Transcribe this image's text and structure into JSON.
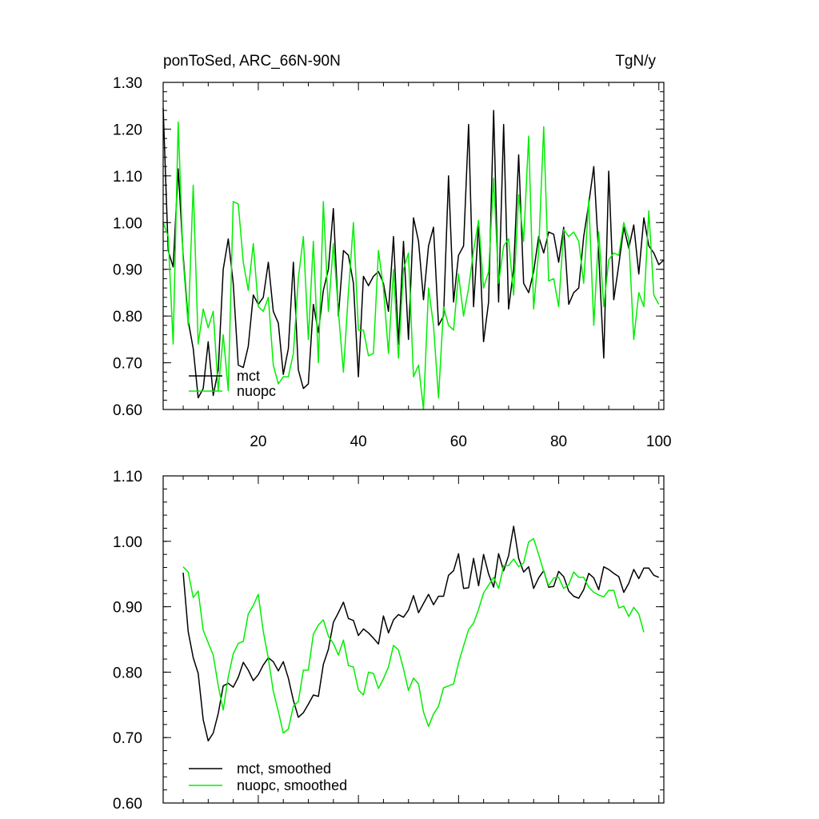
{
  "chart_data": [
    {
      "type": "line",
      "title": "ponToSed, ARC_66N-90N",
      "units": "TgN/y",
      "xlim": [
        1,
        101
      ],
      "ylim": [
        0.6,
        1.3
      ],
      "x_ticks": [
        20,
        40,
        60,
        80,
        100
      ],
      "y_ticks": [
        "0.60",
        "0.70",
        "0.80",
        "0.90",
        "1.00",
        "1.10",
        "1.20",
        "1.30"
      ],
      "legend_position": "bottom-left",
      "series": [
        {
          "name": "mct",
          "color": "#000000",
          "start_x": 1,
          "values": [
            1.245,
            0.94,
            0.905,
            1.115,
            0.93,
            0.79,
            0.73,
            0.625,
            0.645,
            0.745,
            0.63,
            0.685,
            0.9,
            0.965,
            0.87,
            0.695,
            0.69,
            0.735,
            0.845,
            0.825,
            0.84,
            0.915,
            0.81,
            0.785,
            0.675,
            0.73,
            0.915,
            0.685,
            0.645,
            0.655,
            0.825,
            0.765,
            0.855,
            0.9,
            1.03,
            0.8,
            0.94,
            0.93,
            0.87,
            0.67,
            0.885,
            0.865,
            0.885,
            0.895,
            0.87,
            0.81,
            0.97,
            0.74,
            0.96,
            0.75,
            1.01,
            0.96,
            0.835,
            0.95,
            0.99,
            0.78,
            0.8,
            1.1,
            0.83,
            0.93,
            0.95,
            1.21,
            0.82,
            1.0,
            0.745,
            0.83,
            1.24,
            0.83,
            1.21,
            0.815,
            0.9,
            1.145,
            0.87,
            0.85,
            0.895,
            0.97,
            0.935,
            0.98,
            0.975,
            0.915,
            0.99,
            0.825,
            0.85,
            0.86,
            0.97,
            1.04,
            1.12,
            0.93,
            0.71,
            1.11,
            0.835,
            0.91,
            0.99,
            0.945,
            0.995,
            0.89,
            1.01,
            0.95,
            0.935,
            0.91,
            0.92
          ]
        },
        {
          "name": "nuopc",
          "color": "#00ee00",
          "start_x": 1,
          "values": [
            1.0,
            0.97,
            0.74,
            1.215,
            0.92,
            0.78,
            1.08,
            0.74,
            0.815,
            0.775,
            0.81,
            0.64,
            0.76,
            0.64,
            1.045,
            1.04,
            0.915,
            0.855,
            0.955,
            0.82,
            0.81,
            0.84,
            0.695,
            0.655,
            0.67,
            0.67,
            0.72,
            0.88,
            0.97,
            0.75,
            0.96,
            0.7,
            1.045,
            0.81,
            0.955,
            0.81,
            0.68,
            0.85,
            1.0,
            0.77,
            0.77,
            0.715,
            0.72,
            0.94,
            0.86,
            0.72,
            0.9,
            0.71,
            0.9,
            0.935,
            0.67,
            0.695,
            0.6,
            0.86,
            0.78,
            0.625,
            0.82,
            0.78,
            0.77,
            0.89,
            0.8,
            0.86,
            0.94,
            1.005,
            0.86,
            0.895,
            1.095,
            0.87,
            0.95,
            0.965,
            0.845,
            1.06,
            0.96,
            1.185,
            0.815,
            0.94,
            1.205,
            0.875,
            0.88,
            0.82,
            0.985,
            0.97,
            0.98,
            0.96,
            0.87,
            1.05,
            0.78,
            0.98,
            0.82,
            0.92,
            0.935,
            0.93,
            1.0,
            0.965,
            0.75,
            0.85,
            0.82,
            1.025,
            0.845,
            0.825
          ]
        }
      ]
    },
    {
      "type": "line",
      "xlim": [
        1,
        101
      ],
      "ylim": [
        0.6,
        1.1
      ],
      "y_ticks": [
        "0.60",
        "0.70",
        "0.80",
        "0.90",
        "1.00",
        "1.10"
      ],
      "legend_position": "bottom-left",
      "series": [
        {
          "name": "mct, smoothed",
          "color": "#000000",
          "start_x": 5,
          "values": [
            0.952,
            0.862,
            0.822,
            0.798,
            0.727,
            0.695,
            0.707,
            0.737,
            0.779,
            0.783,
            0.777,
            0.792,
            0.815,
            0.803,
            0.787,
            0.796,
            0.811,
            0.822,
            0.816,
            0.802,
            0.816,
            0.791,
            0.757,
            0.731,
            0.738,
            0.751,
            0.765,
            0.763,
            0.812,
            0.835,
            0.876,
            0.891,
            0.907,
            0.882,
            0.879,
            0.856,
            0.866,
            0.86,
            0.852,
            0.843,
            0.886,
            0.86,
            0.88,
            0.888,
            0.884,
            0.895,
            0.917,
            0.891,
            0.905,
            0.919,
            0.903,
            0.916,
            0.916,
            0.948,
            0.955,
            0.981,
            0.928,
            0.929,
            0.974,
            0.932,
            0.98,
            0.95,
            0.93,
            0.981,
            0.955,
            0.978,
            1.023,
            0.974,
            0.953,
            0.961,
            0.928,
            0.944,
            0.955,
            0.93,
            0.931,
            0.954,
            0.946,
            0.924,
            0.916,
            0.913,
            0.926,
            0.951,
            0.944,
            0.926,
            0.961,
            0.957,
            0.951,
            0.946,
            0.922,
            0.936,
            0.957,
            0.943,
            0.959,
            0.959,
            0.948,
            0.945
          ]
        },
        {
          "name": "nuopc, smoothed",
          "color": "#00ee00",
          "start_x": 5,
          "values": [
            0.961,
            0.953,
            0.914,
            0.924,
            0.864,
            0.845,
            0.826,
            0.779,
            0.742,
            0.793,
            0.828,
            0.844,
            0.847,
            0.889,
            0.902,
            0.919,
            0.862,
            0.821,
            0.771,
            0.74,
            0.707,
            0.713,
            0.748,
            0.755,
            0.803,
            0.803,
            0.858,
            0.872,
            0.88,
            0.855,
            0.844,
            0.826,
            0.849,
            0.81,
            0.808,
            0.773,
            0.765,
            0.8,
            0.798,
            0.775,
            0.79,
            0.808,
            0.841,
            0.834,
            0.805,
            0.772,
            0.791,
            0.782,
            0.739,
            0.717,
            0.736,
            0.748,
            0.776,
            0.779,
            0.782,
            0.814,
            0.84,
            0.865,
            0.875,
            0.896,
            0.921,
            0.933,
            0.945,
            0.928,
            0.963,
            0.963,
            0.973,
            0.961,
            0.967,
            0.999,
            1.004,
            0.98,
            0.954,
            0.932,
            0.944,
            0.945,
            0.928,
            0.934,
            0.953,
            0.945,
            0.945,
            0.93,
            0.922,
            0.918,
            0.915,
            0.925,
            0.925,
            0.898,
            0.901,
            0.885,
            0.899,
            0.889,
            0.861
          ]
        }
      ]
    }
  ]
}
